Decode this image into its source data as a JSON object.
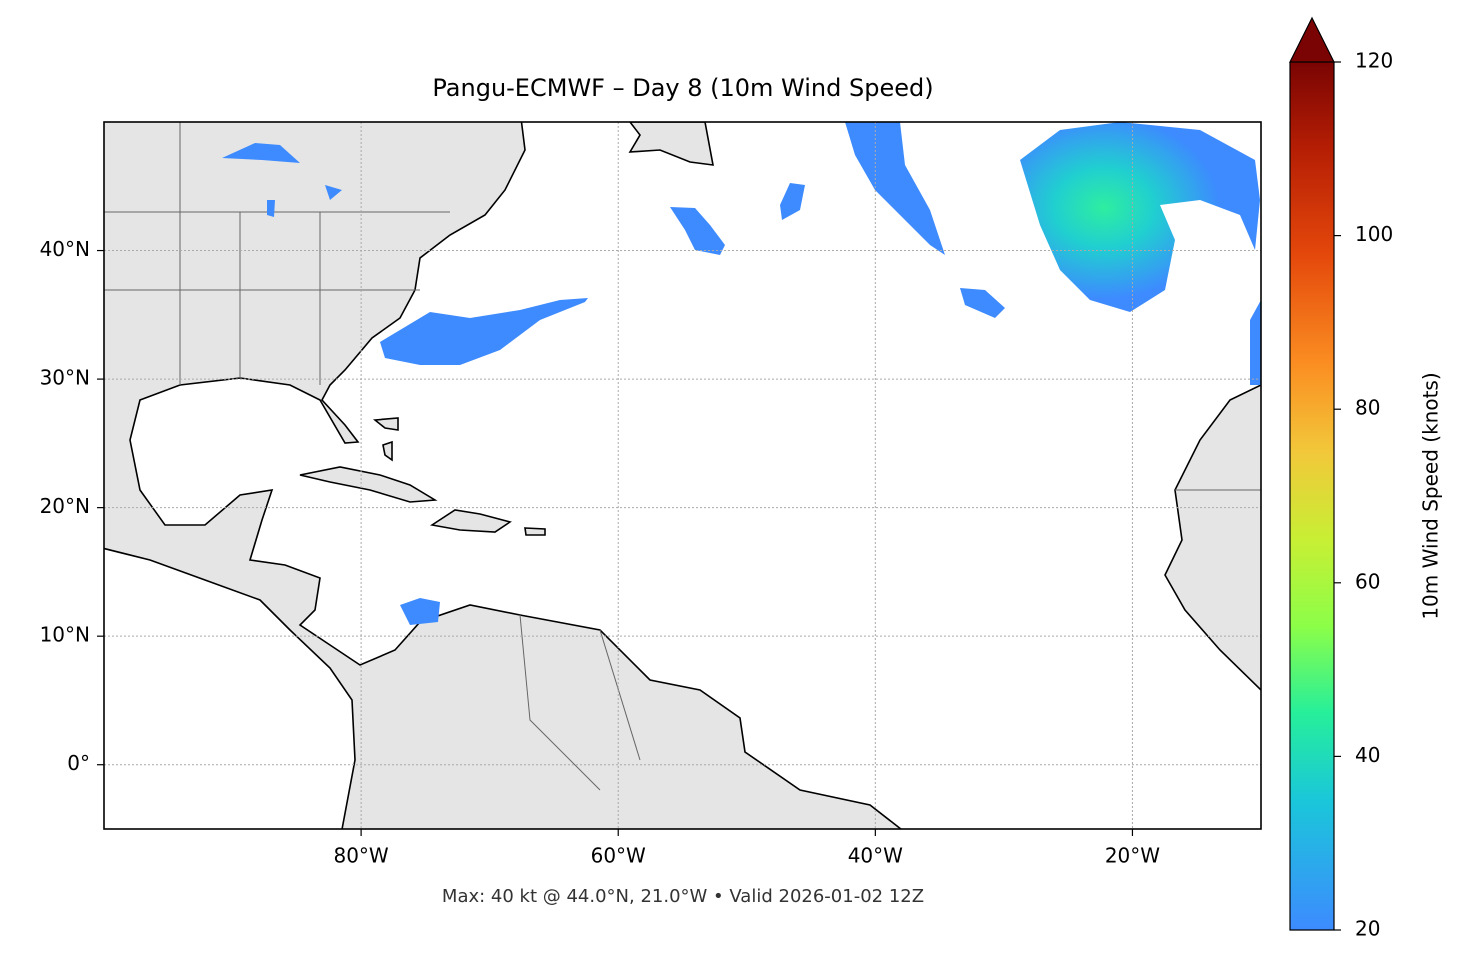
{
  "map": {
    "title": "Pangu-ECMWF – Day 8 (10m Wind Speed)",
    "note": "Max: 40 kt @ 44.0°N, 21.0°W • Valid 2026-01-02 12Z",
    "xlim": [
      -100,
      -10
    ],
    "ylim": [
      -5,
      50
    ],
    "xticks": [
      {
        "value": -80,
        "label": "80°W"
      },
      {
        "value": -60,
        "label": "60°W"
      },
      {
        "value": -40,
        "label": "40°W"
      },
      {
        "value": -20,
        "label": "20°W"
      }
    ],
    "yticks": [
      {
        "value": 0,
        "label": "0°"
      },
      {
        "value": 10,
        "label": "10°N"
      },
      {
        "value": 20,
        "label": "20°N"
      },
      {
        "value": 30,
        "label": "30°N"
      },
      {
        "value": 40,
        "label": "40°N"
      }
    ],
    "grid": true,
    "colorbar": {
      "label": "10m Wind Speed (knots)",
      "lim": [
        20,
        120
      ],
      "ticks": [
        20,
        40,
        60,
        80,
        100,
        120
      ]
    }
  }
}
